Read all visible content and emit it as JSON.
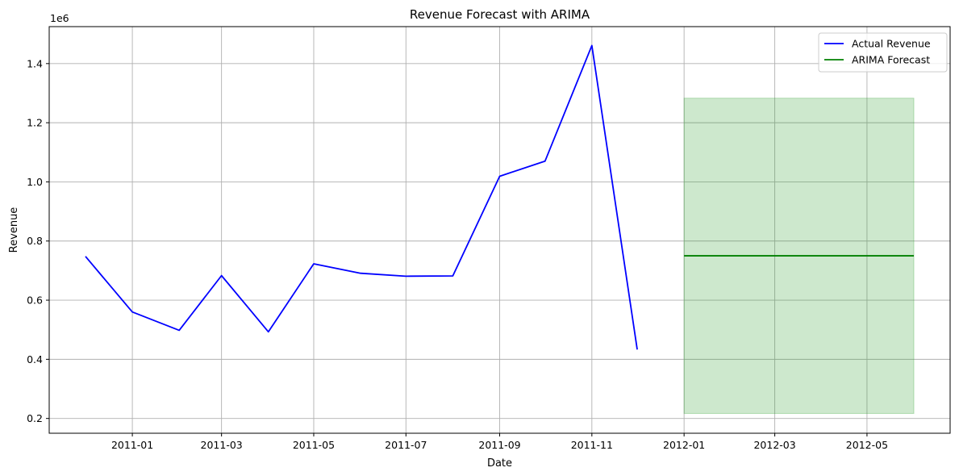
{
  "chart_data": {
    "type": "line",
    "title": "Revenue Forecast with ARIMA",
    "xlabel": "Date",
    "ylabel": "Revenue",
    "y_offset_label": "1e6",
    "y_multiplier": 1000000,
    "xlim": [
      "2010-11-07",
      "2012-06-25"
    ],
    "ylim": [
      0.15,
      1.525
    ],
    "grid": true,
    "legend_position": "top-right",
    "x_ticks": [
      "2011-01-01",
      "2011-03-01",
      "2011-05-01",
      "2011-07-01",
      "2011-09-01",
      "2011-11-01",
      "2012-01-01",
      "2012-03-01",
      "2012-05-01"
    ],
    "x_tick_labels": [
      "2011-01",
      "2011-03",
      "2011-05",
      "2011-07",
      "2011-09",
      "2011-11",
      "2012-01",
      "2012-03",
      "2012-05"
    ],
    "y_ticks": [
      0.2,
      0.4,
      0.6,
      0.8,
      1.0,
      1.2,
      1.4
    ],
    "y_tick_labels": [
      "0.2",
      "0.4",
      "0.6",
      "0.8",
      "1.0",
      "1.2",
      "1.4"
    ],
    "series": [
      {
        "name": "Actual Revenue",
        "color": "#0000ff",
        "x": [
          "2010-12-01",
          "2011-01-01",
          "2011-02-01",
          "2011-03-01",
          "2011-04-01",
          "2011-05-01",
          "2011-06-01",
          "2011-07-01",
          "2011-08-01",
          "2011-09-01",
          "2011-10-01",
          "2011-11-01",
          "2011-12-01"
        ],
        "y": [
          0.748,
          0.56,
          0.498,
          0.683,
          0.493,
          0.723,
          0.691,
          0.681,
          0.682,
          1.019,
          1.07,
          1.461,
          0.433
        ]
      },
      {
        "name": "ARIMA Forecast",
        "color": "#008000",
        "x": [
          "2012-01-01",
          "2012-02-01",
          "2012-03-01",
          "2012-04-01",
          "2012-05-01",
          "2012-06-01"
        ],
        "y": [
          0.75,
          0.75,
          0.75,
          0.75,
          0.75,
          0.75
        ]
      }
    ],
    "confidence_band": {
      "color": "#2ca02c",
      "x": [
        "2012-01-01",
        "2012-06-01"
      ],
      "lower": 0.217,
      "upper": 1.283
    }
  }
}
